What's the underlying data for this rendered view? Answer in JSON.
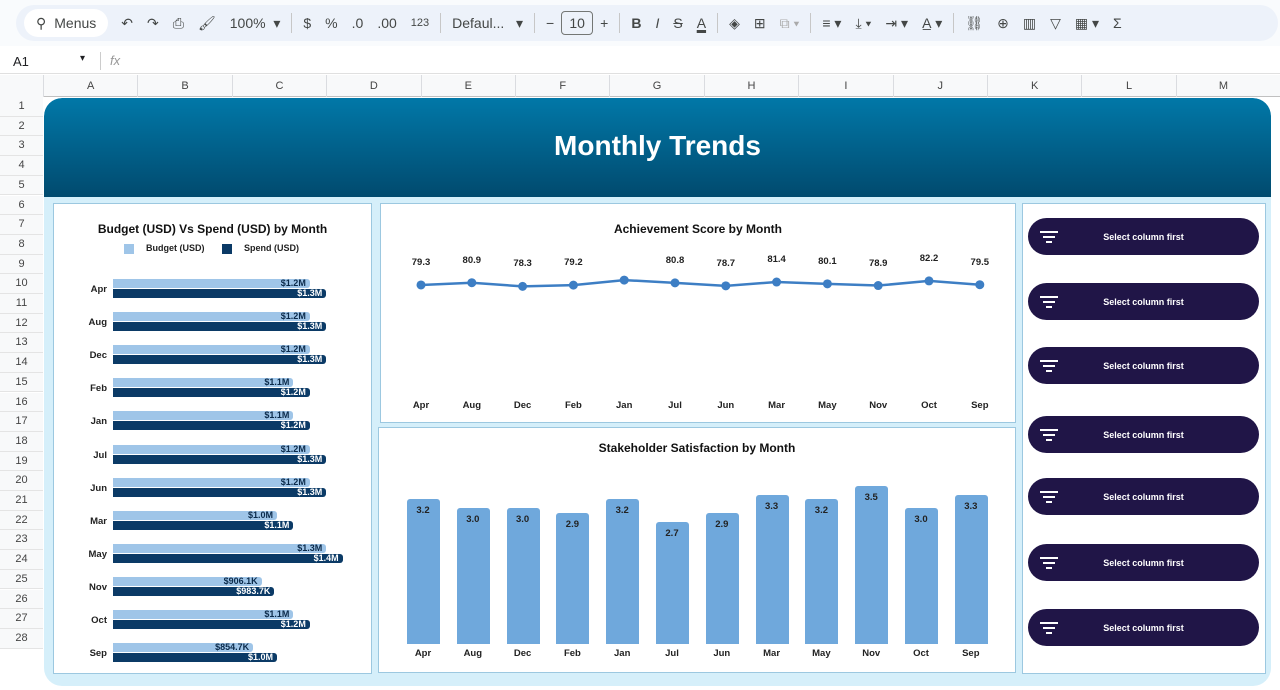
{
  "toolbar": {
    "menus": "Menus",
    "zoom": "100%",
    "currency": "$",
    "percent": "%",
    "dec_less": ".0",
    "dec_more": ".00",
    "format_123": "123",
    "font": "Defaul...",
    "font_size": "10",
    "minus": "−",
    "plus": "+",
    "bold": "B",
    "italic": "I",
    "text_color": "A",
    "sum": "Σ"
  },
  "formula_bar": {
    "cell_ref": "A1",
    "fx": "fx",
    "value": ""
  },
  "columns": [
    "A",
    "B",
    "C",
    "D",
    "E",
    "F",
    "G",
    "H",
    "I",
    "J",
    "K",
    "L",
    "M"
  ],
  "rows": [
    "1",
    "2",
    "3",
    "4",
    "5",
    "6",
    "7",
    "8",
    "9",
    "10",
    "11",
    "12",
    "13",
    "14",
    "15",
    "16",
    "17",
    "18",
    "19",
    "20",
    "21",
    "22",
    "23",
    "24",
    "25",
    "26",
    "27",
    "28"
  ],
  "dashboard": {
    "title": "Monthly Trends",
    "filter_buttons": [
      "Select column first",
      "Select column first",
      "Select column first",
      "Select column first",
      "Select column first",
      "Select column first",
      "Select column first"
    ]
  },
  "colors": {
    "header_top": "#0178a8",
    "header_bottom": "#014a6e",
    "budget": "#9fc5e8",
    "spend": "#0b3a66",
    "line": "#3d7ec4",
    "bar": "#6fa8dc",
    "button": "#201547"
  },
  "chart_data": [
    {
      "type": "bar",
      "orientation": "horizontal",
      "title": "Budget (USD) Vs Spend (USD) by Month",
      "legend": [
        "Budget (USD)",
        "Spend (USD)"
      ],
      "legend_position": "top",
      "categories": [
        "Apr",
        "Aug",
        "Dec",
        "Feb",
        "Jan",
        "Jul",
        "Jun",
        "Mar",
        "May",
        "Nov",
        "Oct",
        "Sep"
      ],
      "series": [
        {
          "name": "Budget (USD)",
          "values": [
            1200000,
            1200000,
            1200000,
            1100000,
            1100000,
            1200000,
            1200000,
            1000000,
            1300000,
            906100,
            1100000,
            854700
          ],
          "labels": [
            "$1.2M",
            "$1.2M",
            "$1.2M",
            "$1.1M",
            "$1.1M",
            "$1.2M",
            "$1.2M",
            "$1.0M",
            "$1.3M",
            "$906.1K",
            "$1.1M",
            "$854.7K"
          ]
        },
        {
          "name": "Spend (USD)",
          "values": [
            1300000,
            1300000,
            1300000,
            1200000,
            1200000,
            1300000,
            1300000,
            1100000,
            1400000,
            983700,
            1200000,
            1000000
          ],
          "labels": [
            "$1.3M",
            "$1.3M",
            "$1.3M",
            "$1.2M",
            "$1.2M",
            "$1.3M",
            "$1.3M",
            "$1.1M",
            "$1.4M",
            "$983.7K",
            "$1.2M",
            "$1.0M"
          ]
        }
      ]
    },
    {
      "type": "line",
      "title": "Achievement Score by Month",
      "categories": [
        "Apr",
        "Aug",
        "Dec",
        "Feb",
        "Jan",
        "Jul",
        "Jun",
        "Mar",
        "May",
        "Nov",
        "Oct",
        "Sep"
      ],
      "values": [
        79.3,
        80.9,
        78.3,
        79.2,
        82.8,
        80.8,
        78.7,
        81.4,
        80.1,
        78.9,
        82.2,
        79.5
      ],
      "labels": [
        "79.3",
        "80.9",
        "78.3",
        "79.2",
        null,
        "80.8",
        "78.7",
        "81.4",
        "80.1",
        "78.9",
        "82.2",
        "79.5"
      ],
      "ylim": [
        0,
        100
      ]
    },
    {
      "type": "bar",
      "title": "Stakeholder Satisfaction by Month",
      "categories": [
        "Apr",
        "Aug",
        "Dec",
        "Feb",
        "Jan",
        "Jul",
        "Jun",
        "Mar",
        "May",
        "Nov",
        "Oct",
        "Sep"
      ],
      "values": [
        3.2,
        3.0,
        3.0,
        2.9,
        3.2,
        2.7,
        2.9,
        3.3,
        3.2,
        3.5,
        3.0,
        3.3
      ],
      "labels": [
        "3.2",
        "3.0",
        "3.0",
        "2.9",
        "3.2",
        "2.7",
        "2.9",
        "3.3",
        "3.2",
        "3.5",
        "3.0",
        "3.3"
      ],
      "ylim": [
        0,
        3.8
      ]
    }
  ]
}
